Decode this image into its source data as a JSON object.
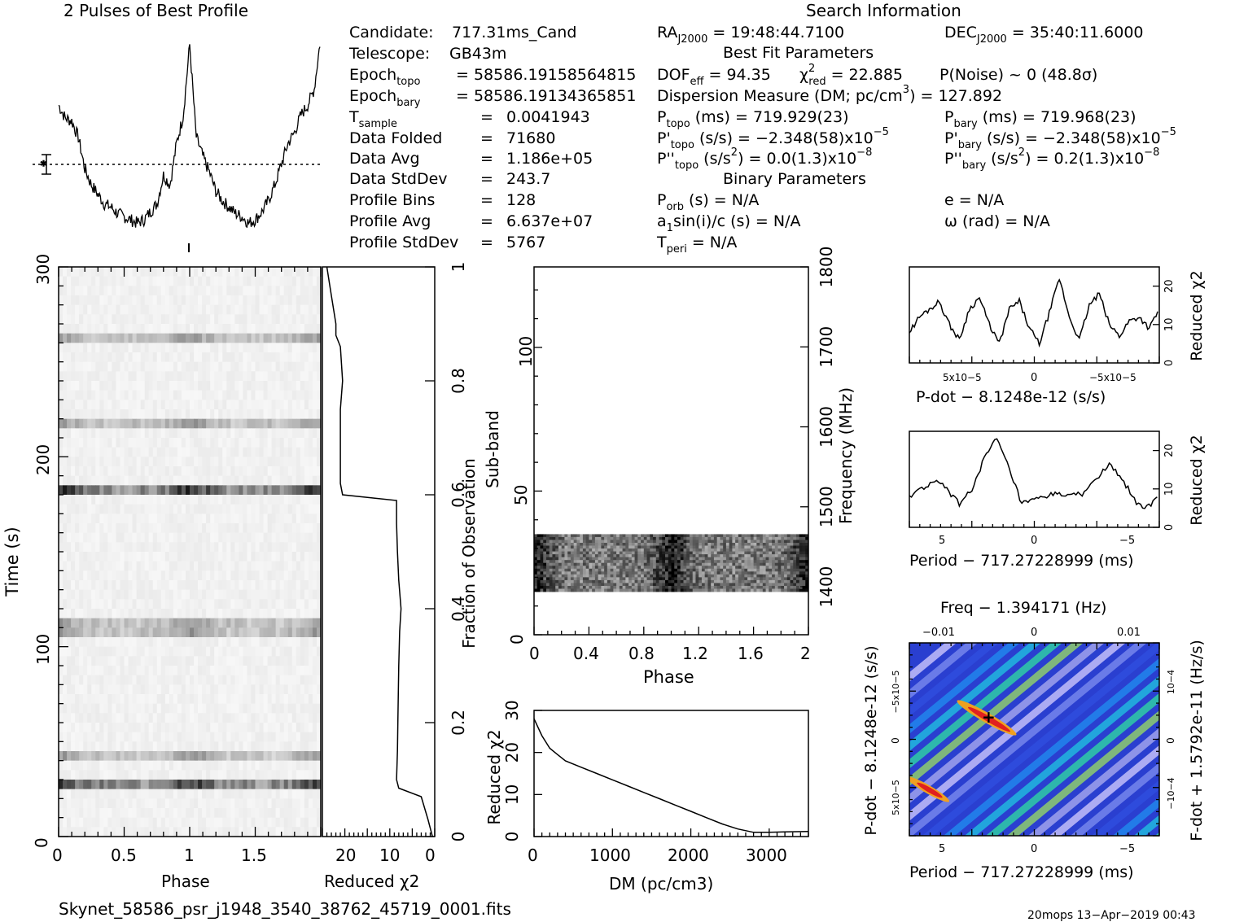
{
  "header": {
    "profile_title": "2 Pulses of Best Profile",
    "search_title": "Search Information",
    "best_fit_title": "Best Fit Parameters",
    "binary_title": "Binary Parameters"
  },
  "candidate_info": [
    {
      "label": "Candidate:",
      "value": "717.31ms_Cand"
    },
    {
      "label": "Telescope:",
      "value": "GB43m"
    },
    {
      "label": "Epoch",
      "sub": "topo",
      "value": "= 58586.19158564815"
    },
    {
      "label": "Epoch",
      "sub": "bary",
      "value": "= 58586.19134365851"
    },
    {
      "label": "T",
      "sub": "sample",
      "value": "0.0041943"
    },
    {
      "label": "Data Folded",
      "value": "71680"
    },
    {
      "label": "Data Avg",
      "value": "1.186e+05"
    },
    {
      "label": "Data StdDev",
      "value": "243.7"
    },
    {
      "label": "Profile Bins",
      "value": "128"
    },
    {
      "label": "Profile Avg",
      "value": "6.637e+07"
    },
    {
      "label": "Profile StdDev",
      "value": "5767"
    }
  ],
  "search_info": {
    "ra": {
      "label": "RA",
      "sub": "J2000",
      "value": "= 19:48:44.7100"
    },
    "dec": {
      "label": "DEC",
      "sub": "J2000",
      "value": "= 35:40:11.6000"
    },
    "dof": {
      "label": "DOF",
      "sub": "eff",
      "value": "= 94.35"
    },
    "chi2": {
      "label": "χ",
      "sup": "2",
      "sub": "red",
      "value": "= 22.885"
    },
    "pnoise": "P(Noise) ~ 0   (48.8σ)",
    "dm": {
      "label": "Dispersion Measure (DM; pc/cm",
      "sup": "3",
      "value": ") = 127.892"
    },
    "ptopo": {
      "label": "P",
      "sub": "topo",
      "value": "(ms) =  719.929(23)"
    },
    "pbary": {
      "label": "P",
      "sub": "bary",
      "value": "(ms) =  719.968(23)"
    },
    "pdtopo": {
      "label": "P'",
      "sub": "topo",
      "value": "(s/s) = −2.348(58)x10",
      "sup": "−5"
    },
    "pdbary": {
      "label": "P'",
      "sub": "bary",
      "value": "(s/s) = −2.348(58)x10",
      "sup": "−5"
    },
    "pddtopo": {
      "label": "P''",
      "sub": "topo",
      "value": "(s/s",
      "sup2": "2",
      "value2": ") = 0.0(1.3)x10",
      "sup": "−8"
    },
    "pddbary": {
      "label": "P''",
      "sub": "bary",
      "value": "(s/s",
      "sup2": "2",
      "value2": ") =  0.2(1.3)x10",
      "sup": "−8"
    },
    "porb": {
      "label": "P",
      "sub": "orb",
      "value": "(s) = N/A"
    },
    "e": "e = N/A",
    "asini": {
      "label": "a",
      "sub": "1",
      "value": "sin(i)/c (s) = N/A"
    },
    "omega": "ω (rad) = N/A",
    "tperi": {
      "label": "T",
      "sub": "peri",
      "value": "= N/A"
    }
  },
  "footer": {
    "filename": "Skynet_58586_psr_j1948_3540_38762_45719_0001.fits",
    "stamp": "20mops 13−Apr−2019 00:43"
  },
  "colors": {
    "axis": "#000000",
    "curve": "#000000",
    "heat_low": "#000080",
    "heat_high": "#ff0000"
  },
  "chart_data": [
    {
      "id": "profile",
      "type": "line",
      "title": "2 Pulses of Best Profile",
      "xlabel": "",
      "ylabel": "",
      "x": [
        0,
        0.05,
        0.1,
        0.15,
        0.2,
        0.25,
        0.3,
        0.35,
        0.4,
        0.45,
        0.5,
        0.55,
        0.6,
        0.65,
        0.7,
        0.75,
        0.8,
        0.85,
        0.9,
        0.95,
        1.0,
        1.05,
        1.1,
        1.15,
        1.2,
        1.25,
        1.3,
        1.35,
        1.4,
        1.45,
        1.5,
        1.55,
        1.6,
        1.65,
        1.7,
        1.75,
        1.8,
        1.85,
        1.9,
        1.95,
        2.0
      ],
      "y": [
        0.62,
        0.54,
        0.52,
        0.42,
        0.22,
        0.12,
        0.06,
        0.0,
        -0.02,
        -0.06,
        -0.08,
        -0.1,
        -0.12,
        -0.1,
        -0.05,
        0.0,
        0.18,
        0.12,
        0.38,
        0.55,
        1.0,
        0.42,
        0.3,
        0.2,
        0.08,
        0.02,
        -0.02,
        -0.06,
        -0.08,
        -0.12,
        -0.1,
        -0.05,
        0.02,
        0.12,
        0.25,
        0.38,
        0.45,
        0.56,
        0.62,
        0.72,
        1.05
      ],
      "noise_level": 0.33
    },
    {
      "id": "time_phase",
      "type": "heatmap",
      "xlabel": "Phase",
      "ylabel": "Time (s)",
      "xticks": [
        "0",
        "0.5",
        "1",
        "1.5"
      ],
      "yticks": [
        "0",
        "100",
        "200",
        "300"
      ],
      "xlim": [
        0,
        2
      ],
      "ylim": [
        0,
        300
      ],
      "bright_rows_s": [
        27,
        183,
        263,
        216,
        44,
        110
      ]
    },
    {
      "id": "time_chi2",
      "type": "line",
      "xlabel": "Reduced χ2",
      "ylabel": "Fraction of Observation",
      "xticks": [
        "20",
        "10",
        "0"
      ],
      "yticks": [
        "0",
        "0.2",
        "0.4",
        "0.6",
        "0.8",
        "1"
      ],
      "fraction": [
        0.0,
        0.03,
        0.07,
        0.085,
        0.1,
        0.15,
        0.2,
        0.3,
        0.36,
        0.4,
        0.45,
        0.5,
        0.55,
        0.59,
        0.6,
        0.62,
        0.75,
        0.8,
        0.86,
        0.88,
        0.9,
        0.95,
        1.0
      ],
      "chi2": [
        0.5,
        1.5,
        3.0,
        8.0,
        8.5,
        8.3,
        8.2,
        8.0,
        7.8,
        7.5,
        8.0,
        8.3,
        8.5,
        8.5,
        20.5,
        21.0,
        21.0,
        20.5,
        21.0,
        22.0,
        22.0,
        23.0,
        24.0
      ]
    },
    {
      "id": "subband_phase",
      "type": "heatmap",
      "xlabel": "Phase",
      "ylabel": "Sub-band",
      "right_label": "Frequency (MHz)",
      "xticks": [
        "0",
        "0.4",
        "0.8",
        "1.2",
        "1.6",
        "2"
      ],
      "yticks": [
        "0",
        "50",
        "100"
      ],
      "rticks": [
        "1400",
        "1500",
        "1600",
        "1700",
        "1800"
      ],
      "subband_range": [
        15,
        35
      ]
    },
    {
      "id": "dm_chi2",
      "type": "line",
      "xlabel": "DM (pc/cm3)",
      "ylabel": "Reduced χ2",
      "xticks": [
        "0",
        "1000",
        "2000",
        "3000"
      ],
      "yticks": [
        "0",
        "10",
        "20",
        "30"
      ],
      "xlim": [
        0,
        3500
      ],
      "ylim": [
        0,
        30
      ],
      "x": [
        0,
        100,
        200,
        300,
        400,
        600,
        800,
        1000,
        1200,
        1400,
        1600,
        1800,
        2000,
        2200,
        2400,
        2600,
        2800,
        3000,
        3200,
        3500
      ],
      "y": [
        28,
        24,
        21,
        19.5,
        18,
        16.5,
        15,
        13.5,
        12,
        10.5,
        9,
        7.5,
        6,
        4.5,
        3,
        1.8,
        1.0,
        1.0,
        1.1,
        1.2
      ]
    },
    {
      "id": "pdot_chi2",
      "type": "line",
      "xlabel": "P-dot − 8.1248e-12 (s/s)",
      "ylabel": "Reduced χ2",
      "xticks": [
        "5x10−5",
        "0",
        "−5x10−5"
      ],
      "yticks": [
        "0",
        "10",
        "20"
      ],
      "ylim": [
        0,
        25
      ],
      "x": [
        0,
        0.04,
        0.08,
        0.12,
        0.16,
        0.2,
        0.24,
        0.28,
        0.32,
        0.36,
        0.4,
        0.44,
        0.48,
        0.52,
        0.56,
        0.6,
        0.64,
        0.68,
        0.72,
        0.76,
        0.8,
        0.84,
        0.88,
        0.92,
        0.96,
        1.0
      ],
      "y": [
        8,
        12,
        14,
        16,
        10,
        6,
        14,
        17,
        10,
        5,
        14,
        16,
        9,
        5,
        13,
        22,
        12,
        6,
        15,
        18,
        10,
        7,
        11,
        12,
        9,
        14
      ]
    },
    {
      "id": "period_chi2",
      "type": "line",
      "xlabel": "Period − 717.27228999 (ms)",
      "ylabel": "Reduced χ2",
      "xticks": [
        "5",
        "0",
        "−5"
      ],
      "yticks": [
        "0",
        "10",
        "20"
      ],
      "ylim": [
        0,
        25
      ],
      "x": [
        0,
        0.05,
        0.1,
        0.15,
        0.2,
        0.25,
        0.3,
        0.35,
        0.4,
        0.45,
        0.5,
        0.55,
        0.6,
        0.65,
        0.7,
        0.75,
        0.8,
        0.85,
        0.9,
        0.95,
        1.0
      ],
      "y": [
        8,
        10,
        12,
        10,
        6,
        10,
        18,
        23,
        15,
        6,
        7,
        8,
        9,
        8,
        9,
        13,
        16,
        13,
        7,
        5,
        8
      ]
    },
    {
      "id": "ppdot_plane",
      "type": "heatmap",
      "title": "Freq − 1.394171 (Hz)",
      "xlabel": "Period − 717.27228999 (ms)",
      "ylabel": "P-dot − 8.1248e-12 (s/s)",
      "right_label": "F-dot + 1.5792e-11 (Hz/s)",
      "xticks": [
        "5",
        "0",
        "−5"
      ],
      "top_ticks": [
        "−0.01",
        "0",
        "0.01"
      ],
      "yticks": [
        "−5x10−5",
        "0",
        "5x10−5"
      ],
      "rticks": [
        "10−4",
        "0",
        "−10−4"
      ],
      "best_fit_marker": [
        2.6,
        -3.0
      ]
    }
  ]
}
